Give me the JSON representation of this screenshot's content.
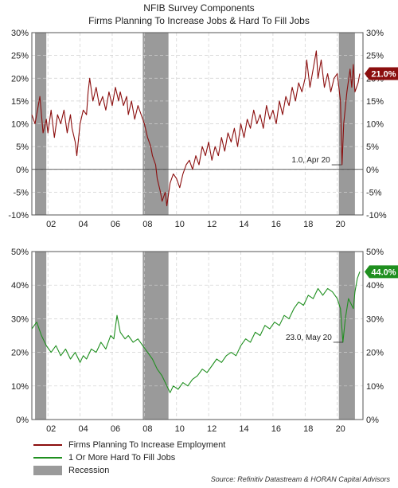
{
  "title": "NFIB Survey Components",
  "subtitle": "Firms Planning To Increase Jobs & Hard To Fill Jobs",
  "colors": {
    "series1": "#8b0e0e",
    "series2": "#1f8f1f",
    "recession": "#9a9a9a",
    "badge1": "#8b0e0e",
    "badge2": "#1f8f1f"
  },
  "legend": [
    {
      "label": "Firms Planning To Increase Employment",
      "kind": "line",
      "color": "#8b0e0e"
    },
    {
      "label": "1 Or More Hard To Fill Jobs",
      "kind": "line",
      "color": "#1f8f1f"
    },
    {
      "label": "Recession",
      "kind": "box",
      "color": "#9a9a9a"
    }
  ],
  "source": "Source: Refinitiv Datastream & HORAN Capital Advisors",
  "chart_data": [
    {
      "type": "line",
      "name": "Firms Planning To Increase Employment",
      "xlim": [
        2001.0,
        2021.6
      ],
      "ylim": [
        -10,
        30
      ],
      "y_ticks": [
        "30%",
        "25%",
        "20%",
        "15%",
        "10%",
        "5%",
        "0%",
        "-5%",
        "-10%"
      ],
      "y_tick_values": [
        30,
        25,
        20,
        15,
        10,
        5,
        0,
        -5,
        -10
      ],
      "x_ticks": [
        "02",
        "04",
        "06",
        "08",
        "10",
        "12",
        "14",
        "16",
        "18",
        "20"
      ],
      "x_tick_values": [
        2002,
        2004,
        2006,
        2008,
        2010,
        2012,
        2014,
        2016,
        2018,
        2020
      ],
      "recessions": [
        [
          2001.2,
          2001.9
        ],
        [
          2007.9,
          2009.5
        ],
        [
          2020.1,
          2021.1
        ]
      ],
      "zero_line": true,
      "grid": true,
      "end_label": "21.0%",
      "annotation": {
        "text": "1.0, Apr 20",
        "x": 2020.25,
        "y": 1.0
      },
      "points": [
        [
          2001.0,
          12
        ],
        [
          2001.2,
          10
        ],
        [
          2001.4,
          14
        ],
        [
          2001.5,
          16
        ],
        [
          2001.7,
          8
        ],
        [
          2001.9,
          11
        ],
        [
          2002.0,
          8
        ],
        [
          2002.2,
          13
        ],
        [
          2002.4,
          7
        ],
        [
          2002.6,
          12
        ],
        [
          2002.8,
          10
        ],
        [
          2003.0,
          13
        ],
        [
          2003.2,
          8
        ],
        [
          2003.4,
          12
        ],
        [
          2003.5,
          9
        ],
        [
          2003.7,
          6
        ],
        [
          2003.8,
          3
        ],
        [
          2004.0,
          10
        ],
        [
          2004.2,
          13
        ],
        [
          2004.4,
          12
        ],
        [
          2004.5,
          17
        ],
        [
          2004.6,
          20
        ],
        [
          2004.8,
          15
        ],
        [
          2005.0,
          18
        ],
        [
          2005.2,
          14
        ],
        [
          2005.4,
          16
        ],
        [
          2005.6,
          13
        ],
        [
          2005.8,
          17
        ],
        [
          2006.0,
          14
        ],
        [
          2006.2,
          18
        ],
        [
          2006.4,
          15
        ],
        [
          2006.5,
          17
        ],
        [
          2006.7,
          14
        ],
        [
          2006.9,
          16
        ],
        [
          2007.0,
          12
        ],
        [
          2007.2,
          15
        ],
        [
          2007.4,
          11
        ],
        [
          2007.6,
          14
        ],
        [
          2007.8,
          12
        ],
        [
          2008.0,
          10
        ],
        [
          2008.2,
          7
        ],
        [
          2008.4,
          5
        ],
        [
          2008.5,
          3
        ],
        [
          2008.7,
          1
        ],
        [
          2008.8,
          -2
        ],
        [
          2009.0,
          -5
        ],
        [
          2009.1,
          -7
        ],
        [
          2009.3,
          -5
        ],
        [
          2009.4,
          -8
        ],
        [
          2009.6,
          -3
        ],
        [
          2009.8,
          -1
        ],
        [
          2010.0,
          -2
        ],
        [
          2010.2,
          -4
        ],
        [
          2010.4,
          -1
        ],
        [
          2010.6,
          1
        ],
        [
          2010.8,
          2
        ],
        [
          2011.0,
          0
        ],
        [
          2011.2,
          3
        ],
        [
          2011.4,
          1
        ],
        [
          2011.6,
          5
        ],
        [
          2011.8,
          3
        ],
        [
          2012.0,
          6
        ],
        [
          2012.2,
          2
        ],
        [
          2012.4,
          5
        ],
        [
          2012.6,
          3
        ],
        [
          2012.8,
          7
        ],
        [
          2013.0,
          4
        ],
        [
          2013.2,
          8
        ],
        [
          2013.4,
          6
        ],
        [
          2013.6,
          9
        ],
        [
          2013.8,
          5
        ],
        [
          2014.0,
          10
        ],
        [
          2014.2,
          7
        ],
        [
          2014.4,
          11
        ],
        [
          2014.6,
          9
        ],
        [
          2014.8,
          13
        ],
        [
          2015.0,
          10
        ],
        [
          2015.2,
          12
        ],
        [
          2015.4,
          9
        ],
        [
          2015.6,
          14
        ],
        [
          2015.8,
          11
        ],
        [
          2016.0,
          13
        ],
        [
          2016.2,
          10
        ],
        [
          2016.4,
          15
        ],
        [
          2016.6,
          12
        ],
        [
          2016.8,
          16
        ],
        [
          2017.0,
          14
        ],
        [
          2017.2,
          18
        ],
        [
          2017.4,
          15
        ],
        [
          2017.6,
          19
        ],
        [
          2017.8,
          17
        ],
        [
          2018.0,
          20
        ],
        [
          2018.1,
          24
        ],
        [
          2018.3,
          18
        ],
        [
          2018.5,
          22
        ],
        [
          2018.7,
          26
        ],
        [
          2018.8,
          20
        ],
        [
          2019.0,
          24
        ],
        [
          2019.2,
          18
        ],
        [
          2019.4,
          21
        ],
        [
          2019.6,
          17
        ],
        [
          2019.8,
          20
        ],
        [
          2020.0,
          21
        ],
        [
          2020.2,
          15
        ],
        [
          2020.3,
          1
        ],
        [
          2020.4,
          10
        ],
        [
          2020.6,
          17
        ],
        [
          2020.8,
          22
        ],
        [
          2020.9,
          18
        ],
        [
          2021.0,
          23
        ],
        [
          2021.1,
          17
        ],
        [
          2021.3,
          19
        ],
        [
          2021.4,
          21
        ]
      ]
    },
    {
      "type": "line",
      "name": "1 Or More Hard To Fill Jobs",
      "xlim": [
        2001.0,
        2021.6
      ],
      "ylim": [
        0,
        50
      ],
      "y_ticks": [
        "50%",
        "40%",
        "30%",
        "20%",
        "10%",
        "0%"
      ],
      "y_tick_values": [
        50,
        40,
        30,
        20,
        10,
        0
      ],
      "x_ticks": [
        "02",
        "04",
        "06",
        "08",
        "10",
        "12",
        "14",
        "16",
        "18",
        "20"
      ],
      "x_tick_values": [
        2002,
        2004,
        2006,
        2008,
        2010,
        2012,
        2014,
        2016,
        2018,
        2020
      ],
      "recessions": [
        [
          2001.2,
          2001.9
        ],
        [
          2007.9,
          2009.5
        ],
        [
          2020.1,
          2021.1
        ]
      ],
      "zero_line": false,
      "grid": true,
      "end_label": "44.0%",
      "annotation": {
        "text": "23.0, May 20",
        "x": 2020.35,
        "y": 23.0
      },
      "points": [
        [
          2001.0,
          27
        ],
        [
          2001.3,
          29
        ],
        [
          2001.6,
          25
        ],
        [
          2001.9,
          22
        ],
        [
          2002.2,
          20
        ],
        [
          2002.5,
          22
        ],
        [
          2002.8,
          19
        ],
        [
          2003.1,
          21
        ],
        [
          2003.4,
          18
        ],
        [
          2003.7,
          20
        ],
        [
          2004.0,
          17
        ],
        [
          2004.2,
          19
        ],
        [
          2004.4,
          18
        ],
        [
          2004.7,
          21
        ],
        [
          2005.0,
          20
        ],
        [
          2005.3,
          23
        ],
        [
          2005.6,
          21
        ],
        [
          2005.9,
          25
        ],
        [
          2006.1,
          24
        ],
        [
          2006.3,
          31
        ],
        [
          2006.5,
          26
        ],
        [
          2006.8,
          24
        ],
        [
          2007.0,
          25
        ],
        [
          2007.3,
          23
        ],
        [
          2007.6,
          24
        ],
        [
          2007.9,
          22
        ],
        [
          2008.2,
          20
        ],
        [
          2008.5,
          18
        ],
        [
          2008.8,
          15
        ],
        [
          2009.1,
          13
        ],
        [
          2009.4,
          10
        ],
        [
          2009.6,
          8
        ],
        [
          2009.8,
          10
        ],
        [
          2010.1,
          9
        ],
        [
          2010.4,
          11
        ],
        [
          2010.7,
          10
        ],
        [
          2011.0,
          12
        ],
        [
          2011.3,
          13
        ],
        [
          2011.6,
          15
        ],
        [
          2011.9,
          14
        ],
        [
          2012.2,
          16
        ],
        [
          2012.5,
          18
        ],
        [
          2012.8,
          17
        ],
        [
          2013.1,
          19
        ],
        [
          2013.4,
          20
        ],
        [
          2013.7,
          19
        ],
        [
          2014.0,
          22
        ],
        [
          2014.3,
          24
        ],
        [
          2014.6,
          23
        ],
        [
          2014.9,
          26
        ],
        [
          2015.2,
          25
        ],
        [
          2015.5,
          28
        ],
        [
          2015.8,
          27
        ],
        [
          2016.1,
          29
        ],
        [
          2016.4,
          28
        ],
        [
          2016.7,
          31
        ],
        [
          2017.0,
          30
        ],
        [
          2017.3,
          33
        ],
        [
          2017.6,
          35
        ],
        [
          2017.9,
          34
        ],
        [
          2018.2,
          37
        ],
        [
          2018.5,
          36
        ],
        [
          2018.8,
          39
        ],
        [
          2019.1,
          37
        ],
        [
          2019.4,
          39
        ],
        [
          2019.7,
          38
        ],
        [
          2020.0,
          36
        ],
        [
          2020.2,
          33
        ],
        [
          2020.35,
          23
        ],
        [
          2020.5,
          30
        ],
        [
          2020.7,
          36
        ],
        [
          2020.9,
          34
        ],
        [
          2021.0,
          33
        ],
        [
          2021.1,
          38
        ],
        [
          2021.25,
          42
        ],
        [
          2021.4,
          44
        ]
      ]
    }
  ]
}
